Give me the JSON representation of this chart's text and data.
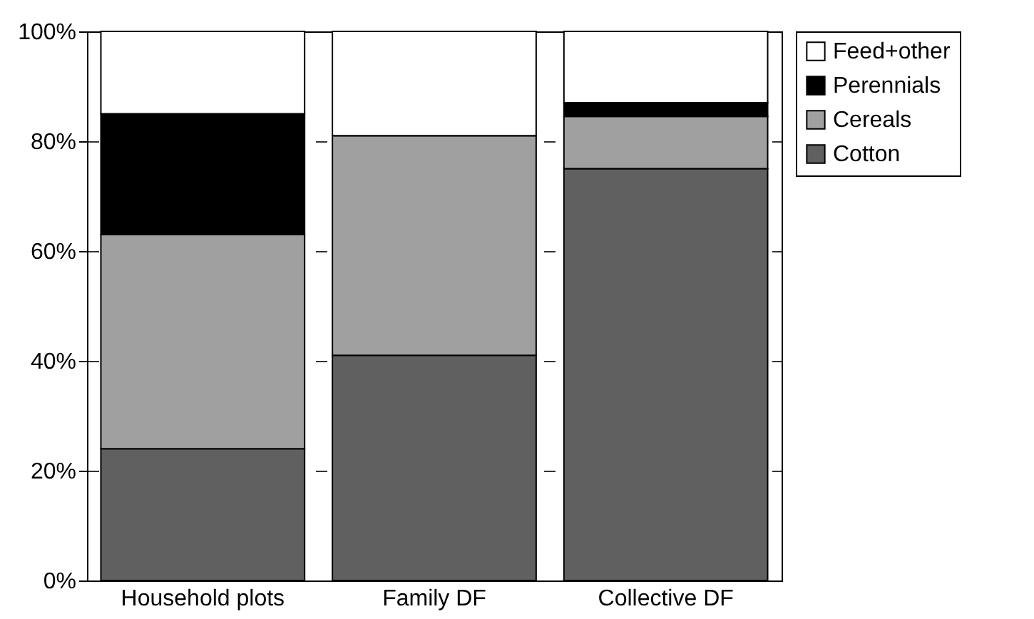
{
  "chart_data": {
    "type": "bar",
    "stacked": true,
    "categories": [
      "Household plots",
      "Family DF",
      "Collective DF"
    ],
    "series": [
      {
        "name": "Cotton",
        "color": "#606060",
        "values": [
          24,
          41,
          75
        ]
      },
      {
        "name": "Cereals",
        "color": "#a0a0a0",
        "values": [
          39,
          40,
          9.5
        ]
      },
      {
        "name": "Perennials",
        "color": "#000000",
        "values": [
          22,
          0,
          2.5
        ]
      },
      {
        "name": "Feed+other",
        "color": "#ffffff",
        "values": [
          15,
          19,
          13
        ]
      }
    ],
    "ylim": [
      0,
      100
    ],
    "yticks": [
      {
        "value": 0,
        "label": "0%"
      },
      {
        "value": 20,
        "label": "20%"
      },
      {
        "value": 40,
        "label": "40%"
      },
      {
        "value": 60,
        "label": "60%"
      },
      {
        "value": 80,
        "label": "80%"
      },
      {
        "value": 100,
        "label": "100%"
      }
    ],
    "grid": "y",
    "legend": "right"
  }
}
